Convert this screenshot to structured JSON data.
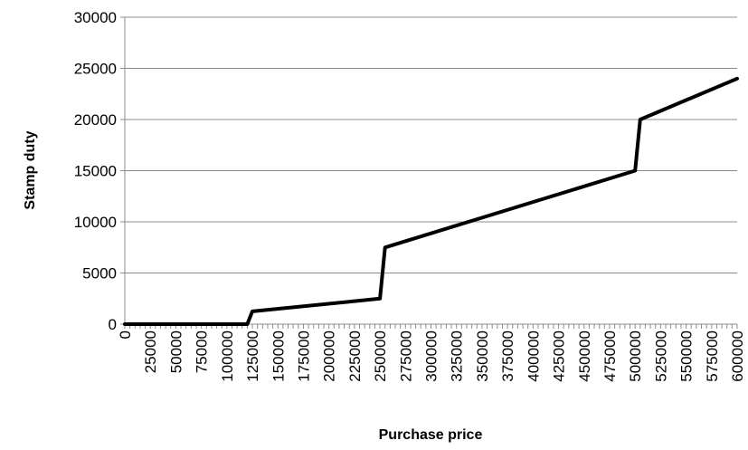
{
  "chart_data": {
    "type": "line",
    "title": "",
    "xlabel": "Purchase price",
    "ylabel": "Stamp duty",
    "ylim": [
      0,
      30000
    ],
    "yticks": [
      0,
      5000,
      10000,
      15000,
      20000,
      25000,
      30000
    ],
    "xlim": [
      0,
      600000
    ],
    "xticks": [
      0,
      25000,
      50000,
      75000,
      100000,
      125000,
      150000,
      175000,
      200000,
      225000,
      250000,
      275000,
      300000,
      325000,
      350000,
      375000,
      400000,
      425000,
      450000,
      475000,
      500000,
      525000,
      550000,
      575000,
      600000
    ],
    "grid": "horizontal",
    "legend": "none",
    "series": [
      {
        "color": "#000000",
        "x": [
          0,
          120000,
          125000,
          250000,
          255000,
          500000,
          505000,
          600000
        ],
        "y": [
          0,
          0,
          1250,
          2500,
          7500,
          15000,
          20000,
          24000
        ]
      }
    ]
  }
}
